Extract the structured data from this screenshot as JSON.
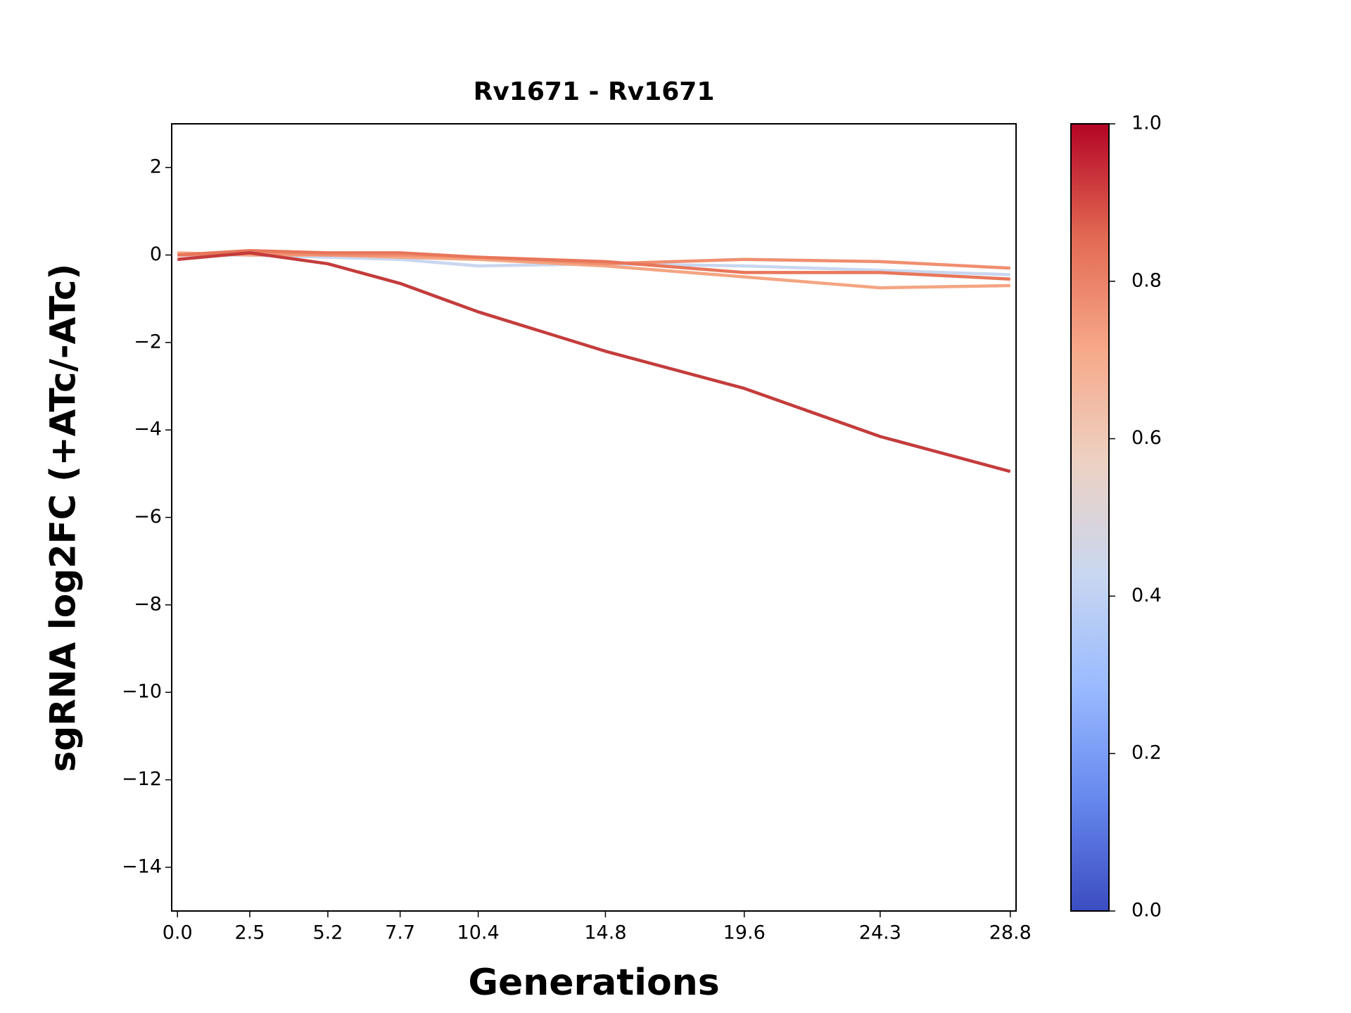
{
  "chart_data": {
    "type": "line",
    "title": "Rv1671 - Rv1671",
    "x_label": "Generations",
    "y_label": "sgRNA log2FC (+ATc/-ATc)",
    "x": [
      0,
      2.5,
      5.2,
      7.7,
      10.4,
      14.8,
      19.6,
      24.3,
      28.8
    ],
    "xlim": [
      -0.2,
      29.0
    ],
    "xticks": [
      {
        "value": 0,
        "label": "0.0"
      },
      2.5,
      5.2,
      7.7,
      10.4,
      14.8,
      19.6,
      24.3,
      28.8
    ],
    "ylim": [
      -15,
      3
    ],
    "yticks": [
      {
        "value": -14,
        "label": "−14"
      },
      {
        "value": -12,
        "label": "−12"
      },
      {
        "value": -10,
        "label": "−10"
      },
      {
        "value": -8,
        "label": "−8"
      },
      {
        "value": -6,
        "label": "−6"
      },
      {
        "value": -4,
        "label": "−4"
      },
      {
        "value": -2,
        "label": "−2"
      },
      0,
      2
    ],
    "series": [
      {
        "color": "#c9d7f0",
        "values": [
          0,
          0,
          -0.05,
          -0.1,
          -0.25,
          -0.2,
          -0.25,
          -0.35,
          -0.45
        ]
      },
      {
        "color": "#f4a582",
        "values": [
          0.05,
          0,
          0,
          -0.05,
          -0.1,
          -0.25,
          -0.5,
          -0.75,
          -0.7
        ]
      },
      {
        "color": "#f08f70",
        "values": [
          0,
          0.05,
          0,
          0,
          -0.05,
          -0.2,
          -0.1,
          -0.15,
          -0.3
        ]
      },
      {
        "color": "#e8765a",
        "values": [
          0,
          0.1,
          0.05,
          0.05,
          -0.05,
          -0.15,
          -0.4,
          -0.4,
          -0.55
        ]
      },
      {
        "color": "#c43c3c",
        "values": [
          -0.1,
          0.05,
          -0.2,
          -0.65,
          -1.3,
          -2.2,
          -3.05,
          -4.15,
          -4.95
        ]
      }
    ],
    "colorbar": {
      "clim": [
        0,
        1
      ],
      "ticks": [
        {
          "value": 0,
          "label": "0.0"
        },
        0.2,
        0.4,
        0.6,
        0.8,
        {
          "value": 1,
          "label": "1.0"
        }
      ],
      "colors": [
        "#3b4cc0",
        "#6788ee",
        "#9abbff",
        "#c9d7f0",
        "#edd1c2",
        "#f7a889",
        "#e26952",
        "#b40426"
      ]
    }
  }
}
